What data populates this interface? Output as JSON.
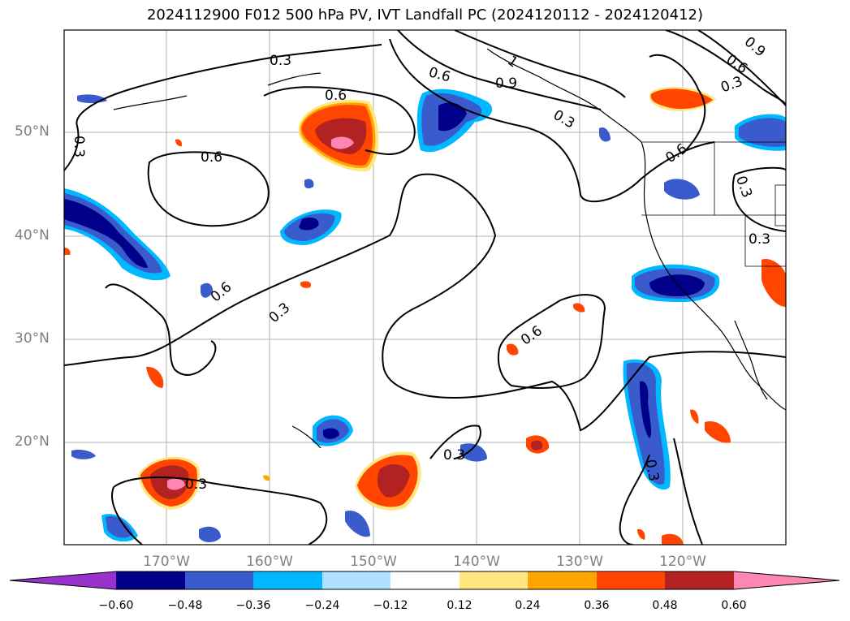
{
  "title": "2024112900 F012 500 hPa PV, IVT Landfall PC (2024120112 - 2024120412)",
  "lat_labels": [
    "50°N",
    "40°N",
    "30°N",
    "20°N"
  ],
  "lon_labels": [
    "170°W",
    "160°W",
    "150°W",
    "140°W",
    "130°W",
    "120°W"
  ],
  "colorbar": {
    "ticks": [
      "−0.60",
      "−0.48",
      "−0.36",
      "−0.24",
      "−0.12",
      "0.12",
      "0.24",
      "0.36",
      "0.48",
      "0.60"
    ],
    "colors": [
      "#9932cc",
      "#00008b",
      "#3a5bcc",
      "#00b8ff",
      "#b0e0ff",
      "#ffffff",
      "#ffe680",
      "#ffa500",
      "#ff4500",
      "#b22222",
      "#ff85b3"
    ]
  },
  "contour_labels": [
    "0.3",
    "0.6",
    "0.9",
    "1"
  ],
  "style": {
    "grid_color": "#b0b0b0",
    "contour_color": "#000000",
    "axis_label_color": "#808080"
  }
}
